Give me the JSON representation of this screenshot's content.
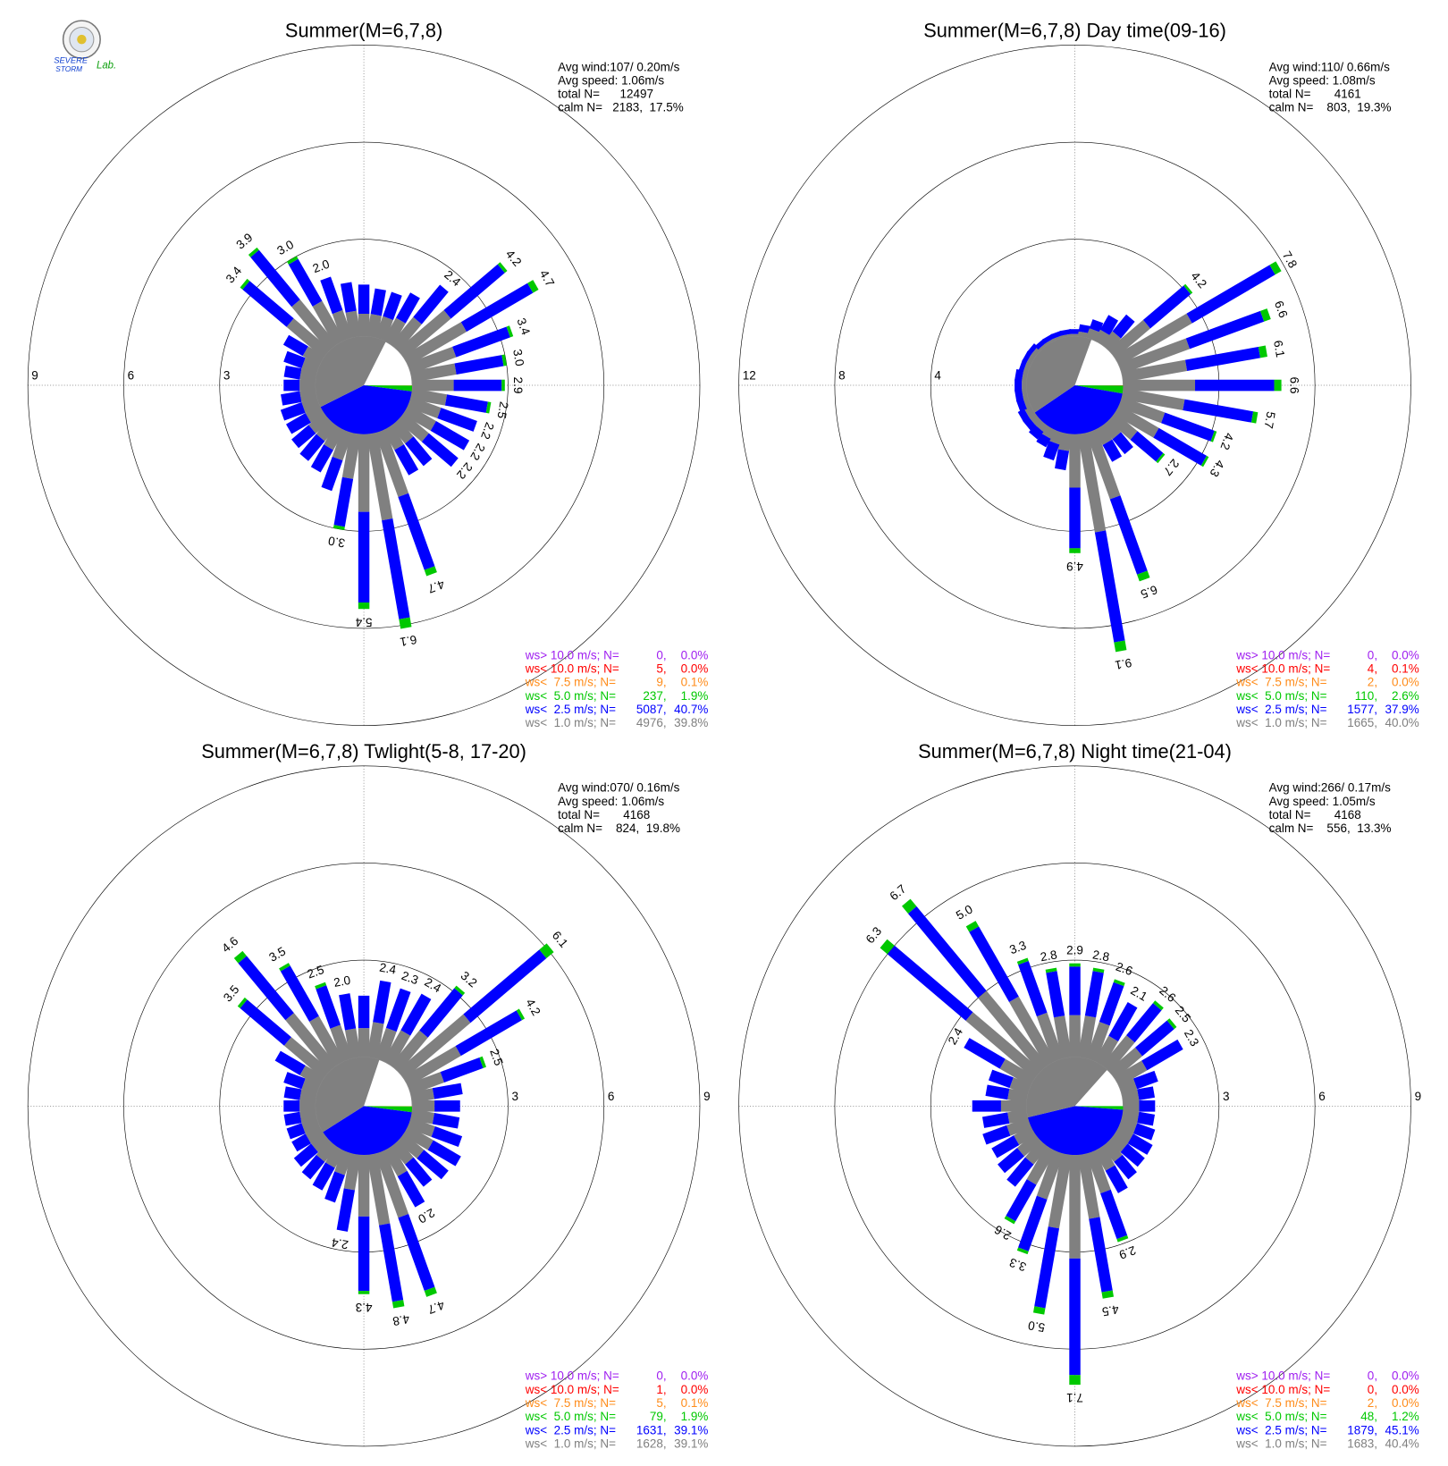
{
  "logo": {
    "line1": "SEVERE",
    "line2": "STORM",
    "suffix": "Lab."
  },
  "chart_data": [
    {
      "type": "windrose",
      "title": "Summer(M=6,7,8)",
      "stats": [
        "Avg wind:107/ 0.20m/s",
        "Avg speed: 1.06m/s",
        "total N=      12497",
        "calm N=   2183,  17.5%"
      ],
      "rlim": [
        0,
        9
      ],
      "rticks": [
        3,
        6,
        9
      ],
      "rtick_side": "west",
      "x": [
        0,
        10,
        20,
        30,
        40,
        50,
        60,
        70,
        80,
        90,
        100,
        110,
        120,
        130,
        140,
        150,
        160,
        170,
        180,
        190,
        200,
        210,
        220,
        230,
        240,
        250,
        260,
        270,
        280,
        290,
        300,
        310,
        320,
        330,
        340,
        350
      ],
      "series": [
        {
          "name": "ws> 10.0 m/s; N=",
          "color": "#a020f0",
          "n": {
            "value": 0,
            "label": "0,"
          },
          "share": {
            "value": 0.0,
            "label": "0.0%"
          }
        },
        {
          "name": "ws< 10.0 m/s; N=",
          "color": "#ff0000",
          "n": {
            "value": 5,
            "label": "5,"
          },
          "share": {
            "value": 0.0,
            "label": "0.0%"
          }
        },
        {
          "name": "ws<  7.5 m/s; N=",
          "color": "#ff8c1a",
          "n": {
            "value": 9,
            "label": "9,"
          },
          "share": {
            "value": 0.1,
            "label": "0.1%"
          }
        },
        {
          "name": "ws<  5.0 m/s; N=",
          "color": "#00c800",
          "n": {
            "value": 237,
            "label": "237,"
          },
          "share": {
            "value": 1.9,
            "label": "1.9%"
          },
          "values": [
            0,
            0,
            0,
            0,
            0,
            0.1,
            0.2,
            0.1,
            0.1,
            0.1,
            0.1,
            0,
            0,
            0,
            0,
            0,
            0.2,
            0.3,
            0.2,
            0.1,
            0,
            0,
            0,
            0,
            0,
            0,
            0,
            0,
            0,
            0,
            0,
            0.1,
            0.1,
            0.1,
            0,
            0
          ]
        },
        {
          "name": "ws<  2.5 m/s; N=",
          "color": "#0000ff",
          "n": {
            "value": 5087,
            "label": "5087,"
          },
          "share": {
            "value": 40.7,
            "label": "40.7%"
          },
          "values": [
            0.9,
            0.8,
            0.8,
            0.9,
            1.3,
            2.2,
            2.4,
            1.8,
            1.5,
            1.5,
            1.3,
            1.2,
            1.2,
            1.2,
            0.9,
            0.9,
            2.4,
            3.1,
            2.8,
            1.5,
            1.0,
            0.8,
            0.8,
            0.7,
            0.7,
            0.7,
            0.6,
            0.5,
            0.5,
            0.6,
            0.7,
            1.8,
            2.0,
            1.5,
            1.1,
            0.9
          ]
        },
        {
          "name": "ws<  1.0 m/s; N=",
          "color": "#808080",
          "n": {
            "value": 4976,
            "label": "4976,"
          },
          "share": {
            "value": 39.8,
            "label": "39.8%"
          },
          "values": [
            0.7,
            0.7,
            0.7,
            0.8,
            1.1,
            1.9,
            2.1,
            1.5,
            1.4,
            1.3,
            1.1,
            1.0,
            1.0,
            1.0,
            0.7,
            0.7,
            2.1,
            2.7,
            2.4,
            1.4,
            0.9,
            0.7,
            0.6,
            0.6,
            0.5,
            0.5,
            0.5,
            0.5,
            0.5,
            0.5,
            0.6,
            1.5,
            1.8,
            1.4,
            0.9,
            0.8
          ]
        }
      ],
      "total_labels": [
        null,
        null,
        null,
        null,
        "2.4",
        "4.2",
        "4.7",
        "3.4",
        "3.0",
        "2.9",
        "2.5",
        "2.2",
        "2.2",
        "2.2",
        null,
        null,
        "4.7",
        "6.1",
        "5.4",
        "3.0",
        null,
        null,
        null,
        null,
        null,
        null,
        null,
        null,
        null,
        null,
        null,
        "3.4",
        "3.9",
        "3.0",
        "2.0",
        null
      ]
    },
    {
      "type": "windrose",
      "title": "Summer(M=6,7,8) Day time(09-16)",
      "stats": [
        "Avg wind:110/ 0.66m/s",
        "Avg speed: 1.08m/s",
        "total N=       4161",
        "calm N=    803,  19.3%"
      ],
      "rlim": [
        0,
        12
      ],
      "rticks": [
        4,
        8,
        12
      ],
      "rtick_side": "west",
      "x": [
        0,
        10,
        20,
        30,
        40,
        50,
        60,
        70,
        80,
        90,
        100,
        110,
        120,
        130,
        140,
        150,
        160,
        170,
        180,
        190,
        200,
        210,
        220,
        230,
        240,
        250,
        260,
        270,
        280,
        290,
        300,
        310,
        320,
        330,
        340,
        350
      ],
      "series": [
        {
          "name": "ws> 10.0 m/s; N=",
          "color": "#a020f0",
          "n": {
            "value": 0,
            "label": "0,"
          },
          "share": {
            "value": 0.0,
            "label": "0.0%"
          }
        },
        {
          "name": "ws< 10.0 m/s; N=",
          "color": "#ff0000",
          "n": {
            "value": 4,
            "label": "4,"
          },
          "share": {
            "value": 0.1,
            "label": "0.1%"
          }
        },
        {
          "name": "ws<  7.5 m/s; N=",
          "color": "#ff8c1a",
          "n": {
            "value": 2,
            "label": "2,"
          },
          "share": {
            "value": 0.0,
            "label": "0.0%"
          }
        },
        {
          "name": "ws<  5.0 m/s; N=",
          "color": "#00c800",
          "n": {
            "value": 110,
            "label": "110,"
          },
          "share": {
            "value": 2.6,
            "label": "2.6%"
          },
          "values": [
            0,
            0,
            0,
            0,
            0,
            0.1,
            0.3,
            0.3,
            0.3,
            0.3,
            0.2,
            0.1,
            0.1,
            0.1,
            0,
            0,
            0.3,
            0.4,
            0.2,
            0,
            0,
            0,
            0,
            0,
            0,
            0,
            0,
            0,
            0,
            0,
            0,
            0,
            0,
            0,
            0,
            0
          ]
        },
        {
          "name": "ws<  2.5 m/s; N=",
          "color": "#0000ff",
          "n": {
            "value": 1577,
            "label": "1577,"
          },
          "share": {
            "value": 37.9,
            "label": "37.9%"
          },
          "values": [
            0.2,
            0.3,
            0.4,
            0.7,
            0.9,
            2.2,
            4.0,
            3.3,
            3.1,
            3.3,
            2.9,
            2.2,
            2.3,
            1.4,
            0.8,
            0.8,
            3.3,
            4.6,
            2.5,
            0.8,
            0.7,
            0.4,
            0.4,
            0.3,
            0.3,
            0.3,
            0.3,
            0.3,
            0.3,
            0.2,
            0.2,
            0.2,
            0.2,
            0.2,
            0.2,
            0.2
          ]
        },
        {
          "name": "ws<  1.0 m/s; N=",
          "color": "#808080",
          "n": {
            "value": 1665,
            "label": "1665,"
          },
          "share": {
            "value": 40.0,
            "label": "40.0%"
          },
          "values": [
            0.1,
            0.2,
            0.4,
            0.5,
            0.7,
            1.9,
            3.5,
            3.0,
            2.7,
            3.0,
            2.6,
            1.9,
            1.9,
            1.2,
            0.7,
            0.7,
            2.9,
            4.1,
            2.2,
            0.7,
            0.5,
            0.4,
            0.3,
            0.3,
            0.3,
            0.2,
            0.2,
            0.2,
            0.2,
            0.2,
            0.2,
            0.2,
            0.1,
            0.1,
            0.1,
            0.1
          ]
        }
      ],
      "total_labels": [
        null,
        null,
        null,
        null,
        null,
        "4.2",
        "7.8",
        "6.6",
        "6.1",
        "6.6",
        "5.7",
        "4.2",
        "4.3",
        "2.7",
        null,
        null,
        "6.5",
        "9.1",
        "4.9",
        null,
        null,
        null,
        null,
        null,
        null,
        null,
        null,
        null,
        null,
        null,
        null,
        null,
        null,
        null,
        null,
        null
      ]
    },
    {
      "type": "windrose",
      "title": "Summer(M=6,7,8) Twlight(5-8, 17-20)",
      "stats": [
        "Avg wind:070/ 0.16m/s",
        "Avg speed: 1.06m/s",
        "total N=       4168",
        "calm N=    824,  19.8%"
      ],
      "rlim": [
        0,
        9
      ],
      "rticks": [
        3,
        6,
        9
      ],
      "rtick_side": "east",
      "x": [
        0,
        10,
        20,
        30,
        40,
        50,
        60,
        70,
        80,
        90,
        100,
        110,
        120,
        130,
        140,
        150,
        160,
        170,
        180,
        190,
        200,
        210,
        220,
        230,
        240,
        250,
        260,
        270,
        280,
        290,
        300,
        310,
        320,
        330,
        340,
        350
      ],
      "series": [
        {
          "name": "ws> 10.0 m/s; N=",
          "color": "#a020f0",
          "n": {
            "value": 0,
            "label": "0,"
          },
          "share": {
            "value": 0.0,
            "label": "0.0%"
          }
        },
        {
          "name": "ws< 10.0 m/s; N=",
          "color": "#ff0000",
          "n": {
            "value": 1,
            "label": "1,"
          },
          "share": {
            "value": 0.0,
            "label": "0.0%"
          }
        },
        {
          "name": "ws<  7.5 m/s; N=",
          "color": "#ff8c1a",
          "n": {
            "value": 5,
            "label": "5,"
          },
          "share": {
            "value": 0.1,
            "label": "0.1%"
          }
        },
        {
          "name": "ws<  5.0 m/s; N=",
          "color": "#00c800",
          "n": {
            "value": 79,
            "label": "79,"
          },
          "share": {
            "value": 1.9,
            "label": "1.9%"
          },
          "values": [
            0,
            0,
            0,
            0,
            0.1,
            0.3,
            0.1,
            0.1,
            0,
            0,
            0,
            0,
            0,
            0,
            0,
            0,
            0.2,
            0.2,
            0.1,
            0,
            0,
            0,
            0,
            0,
            0,
            0,
            0,
            0,
            0,
            0,
            0,
            0.1,
            0.2,
            0.1,
            0.1,
            0
          ]
        },
        {
          "name": "ws<  2.5 m/s; N=",
          "color": "#0000ff",
          "n": {
            "value": 1631,
            "label": "1631,"
          },
          "share": {
            "value": 39.1,
            "label": "39.1%"
          },
          "values": [
            1.0,
            1.3,
            1.3,
            1.3,
            1.7,
            3.1,
            2.2,
            1.3,
            0.9,
            0.8,
            0.8,
            0.9,
            1.0,
            1.0,
            0.9,
            1.1,
            2.4,
            2.4,
            2.3,
            1.3,
            0.9,
            0.8,
            0.7,
            0.7,
            0.5,
            0.5,
            0.5,
            0.5,
            0.5,
            0.6,
            0.9,
            1.8,
            2.3,
            1.8,
            1.3,
            1.1
          ]
        },
        {
          "name": "ws<  1.0 m/s; N=",
          "color": "#808080",
          "n": {
            "value": 1628,
            "label": "1628,"
          },
          "share": {
            "value": 39.1,
            "label": "39.1%"
          },
          "values": [
            0.9,
            1.1,
            1.0,
            1.1,
            1.4,
            2.7,
            1.9,
            1.1,
            0.7,
            0.7,
            0.7,
            0.8,
            0.9,
            0.8,
            0.7,
            0.9,
            2.1,
            2.2,
            1.9,
            1.1,
            0.7,
            0.6,
            0.6,
            0.5,
            0.5,
            0.5,
            0.5,
            0.5,
            0.5,
            0.5,
            0.7,
            1.6,
            2.1,
            1.6,
            1.1,
            0.9
          ]
        }
      ],
      "total_labels": [
        null,
        "2.4",
        "2.3",
        "2.4",
        "3.2",
        "6.1",
        "4.2",
        "2.5",
        null,
        null,
        null,
        null,
        null,
        null,
        null,
        "2.0",
        "4.7",
        "4.8",
        "4.3",
        "2.4",
        null,
        null,
        null,
        null,
        null,
        null,
        null,
        null,
        null,
        null,
        null,
        "3.5",
        "4.6",
        "3.5",
        "2.5",
        "2.0"
      ]
    },
    {
      "type": "windrose",
      "title": "Summer(M=6,7,8) Night time(21-04)",
      "stats": [
        "Avg wind:266/ 0.17m/s",
        "Avg speed: 1.05m/s",
        "total N=       4168",
        "calm N=    556,  13.3%"
      ],
      "rlim": [
        0,
        9
      ],
      "rticks": [
        3,
        6,
        9
      ],
      "rtick_side": "east",
      "x": [
        0,
        10,
        20,
        30,
        40,
        50,
        60,
        70,
        80,
        90,
        100,
        110,
        120,
        130,
        140,
        150,
        160,
        170,
        180,
        190,
        200,
        210,
        220,
        230,
        240,
        250,
        260,
        270,
        280,
        290,
        300,
        310,
        320,
        330,
        340,
        350
      ],
      "series": [
        {
          "name": "ws> 10.0 m/s; N=",
          "color": "#a020f0",
          "n": {
            "value": 0,
            "label": "0,"
          },
          "share": {
            "value": 0.0,
            "label": "0.0%"
          }
        },
        {
          "name": "ws< 10.0 m/s; N=",
          "color": "#ff0000",
          "n": {
            "value": 0,
            "label": "0,"
          },
          "share": {
            "value": 0.0,
            "label": "0.0%"
          }
        },
        {
          "name": "ws<  7.5 m/s; N=",
          "color": "#ff8c1a",
          "n": {
            "value": 2,
            "label": "2,"
          },
          "share": {
            "value": 0.0,
            "label": "0.0%"
          }
        },
        {
          "name": "ws<  5.0 m/s; N=",
          "color": "#00c800",
          "n": {
            "value": 48,
            "label": "48,"
          },
          "share": {
            "value": 1.2,
            "label": "1.2%"
          },
          "values": [
            0.1,
            0.1,
            0.1,
            0,
            0.1,
            0.1,
            0,
            0,
            0,
            0,
            0,
            0,
            0,
            0,
            0,
            0,
            0.1,
            0.2,
            0.3,
            0.2,
            0.1,
            0.1,
            0,
            0,
            0,
            0,
            0,
            0,
            0,
            0,
            0,
            0.3,
            0.3,
            0.2,
            0.1,
            0.1
          ]
        },
        {
          "name": "ws<  2.5 m/s; N=",
          "color": "#0000ff",
          "n": {
            "value": 1879,
            "label": "1879,"
          },
          "share": {
            "value": 45.1,
            "label": "45.1%"
          },
          "values": [
            1.5,
            1.4,
            1.3,
            1.2,
            1.3,
            1.3,
            1.3,
            0.7,
            0.5,
            0.5,
            0.5,
            0.6,
            0.7,
            0.7,
            0.7,
            0.8,
            1.5,
            2.3,
            3.6,
            2.5,
            1.7,
            1.3,
            0.9,
            0.8,
            0.8,
            0.8,
            0.8,
            0.9,
            0.7,
            0.7,
            1.3,
            3.2,
            3.4,
            2.5,
            1.7,
            1.4
          ]
        },
        {
          "name": "ws<  1.0 m/s; N=",
          "color": "#808080",
          "n": {
            "value": 1683,
            "label": "1683,"
          },
          "share": {
            "value": 40.4,
            "label": "40.4%"
          },
          "values": [
            1.3,
            1.3,
            1.2,
            0.9,
            1.2,
            1.1,
            1.0,
            0.5,
            0.5,
            0.5,
            0.5,
            0.5,
            0.5,
            0.5,
            0.6,
            0.7,
            1.3,
            2.0,
            3.2,
            2.3,
            1.5,
            1.2,
            0.7,
            0.7,
            0.6,
            0.7,
            0.6,
            0.8,
            0.6,
            0.6,
            1.1,
            2.8,
            3.0,
            2.3,
            1.5,
            1.3
          ]
        }
      ],
      "total_labels": [
        "2.9",
        "2.8",
        "2.6",
        "2.1",
        "2.6",
        "2.5",
        "2.3",
        null,
        null,
        null,
        null,
        null,
        null,
        null,
        null,
        null,
        "2.9",
        "4.5",
        "7.1",
        "5.0",
        "3.3",
        "2.6",
        null,
        null,
        null,
        null,
        null,
        null,
        null,
        null,
        "2.4",
        "6.3",
        "6.7",
        "5.0",
        "3.3",
        "2.8"
      ]
    }
  ]
}
